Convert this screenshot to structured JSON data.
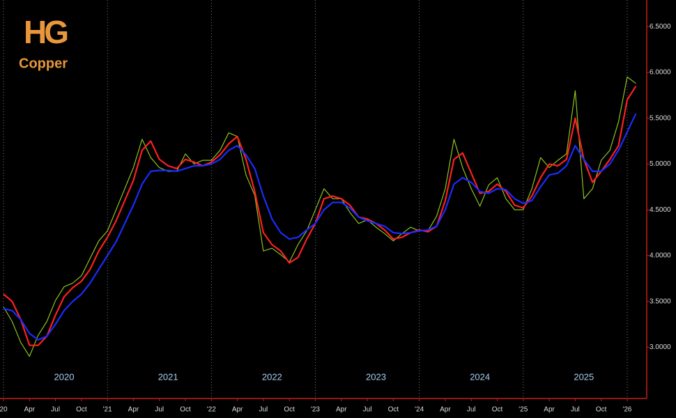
{
  "logo": {
    "mark": "HG",
    "name": "Copper"
  },
  "chart_data": {
    "type": "line",
    "categories": [
      "20",
      null,
      null,
      "Apr",
      null,
      null,
      "Jul",
      null,
      null,
      "Oct",
      null,
      null,
      "'21",
      null,
      null,
      "Apr",
      null,
      null,
      "Jul",
      null,
      null,
      "Oct",
      null,
      null,
      "'22",
      null,
      null,
      "Apr",
      null,
      null,
      "Jul",
      null,
      null,
      "Oct",
      null,
      null,
      "'23",
      null,
      null,
      "Apr",
      null,
      null,
      "Jul",
      null,
      null,
      "Oct",
      null,
      null,
      "'24",
      null,
      null,
      "Apr",
      null,
      null,
      "Jul",
      null,
      null,
      "Oct",
      null,
      null,
      "'25",
      null,
      null,
      "Apr",
      null,
      null,
      "Jul",
      null,
      null,
      "Oct",
      null,
      null,
      "'26",
      null
    ],
    "year_labels": [
      "2020",
      "2021",
      "2022",
      "2023",
      "2024",
      "2025"
    ],
    "series": [
      {
        "color": "#8fc31f",
        "values": [
          3.44,
          3.28,
          3.05,
          2.9,
          3.13,
          3.28,
          3.51,
          3.66,
          3.7,
          3.78,
          3.97,
          4.16,
          4.27,
          4.5,
          4.73,
          4.96,
          5.27,
          5.07,
          4.96,
          4.92,
          4.92,
          5.11,
          5.0,
          5.04,
          5.04,
          5.15,
          5.34,
          5.3,
          4.88,
          4.66,
          4.05,
          4.08,
          4.01,
          3.93,
          4.12,
          4.27,
          4.5,
          4.73,
          4.62,
          4.62,
          4.47,
          4.35,
          4.39,
          4.31,
          4.24,
          4.16,
          4.24,
          4.31,
          4.27,
          4.27,
          4.43,
          4.73,
          5.27,
          4.96,
          4.73,
          4.54,
          4.77,
          4.85,
          4.62,
          4.5,
          4.5,
          4.73,
          5.07,
          4.96,
          5.04,
          5.11,
          5.8,
          4.62,
          4.73,
          5.04,
          5.15,
          5.46,
          5.95,
          5.88
        ]
      },
      {
        "color": "#ff2020",
        "values": [
          3.58,
          3.5,
          3.3,
          3.02,
          3.02,
          3.12,
          3.35,
          3.55,
          3.65,
          3.72,
          3.85,
          4.05,
          4.2,
          4.38,
          4.6,
          4.82,
          5.15,
          5.25,
          5.05,
          4.98,
          4.95,
          5.05,
          5.02,
          4.98,
          5.02,
          5.1,
          5.22,
          5.3,
          5.05,
          4.7,
          4.25,
          4.12,
          4.05,
          3.92,
          3.98,
          4.18,
          4.35,
          4.62,
          4.65,
          4.62,
          4.55,
          4.42,
          4.4,
          4.35,
          4.28,
          4.18,
          4.2,
          4.25,
          4.28,
          4.26,
          4.32,
          4.6,
          5.05,
          5.12,
          4.9,
          4.68,
          4.7,
          4.78,
          4.7,
          4.55,
          4.52,
          4.65,
          4.85,
          5.0,
          4.98,
          5.05,
          5.5,
          5.05,
          4.8,
          4.92,
          5.05,
          5.2,
          5.7,
          5.85
        ]
      },
      {
        "color": "#1a2cff",
        "values": [
          3.42,
          3.4,
          3.3,
          3.15,
          3.08,
          3.12,
          3.25,
          3.4,
          3.5,
          3.58,
          3.7,
          3.85,
          4.0,
          4.15,
          4.35,
          4.55,
          4.78,
          4.92,
          4.93,
          4.93,
          4.92,
          4.95,
          4.98,
          4.98,
          5.0,
          5.05,
          5.15,
          5.2,
          5.1,
          4.95,
          4.65,
          4.4,
          4.25,
          4.18,
          4.2,
          4.28,
          4.35,
          4.5,
          4.58,
          4.58,
          4.52,
          4.42,
          4.38,
          4.35,
          4.32,
          4.25,
          4.24,
          4.25,
          4.27,
          4.28,
          4.32,
          4.5,
          4.78,
          4.85,
          4.8,
          4.7,
          4.68,
          4.73,
          4.72,
          4.62,
          4.57,
          4.6,
          4.75,
          4.88,
          4.9,
          4.98,
          5.2,
          5.05,
          4.92,
          4.92,
          5.0,
          5.15,
          5.35,
          5.55
        ]
      }
    ],
    "ylim": [
      2.44,
      6.79
    ],
    "yticks": [
      {
        "value": 3.0,
        "label": "3.0000"
      },
      {
        "value": 3.5,
        "label": "3.5000"
      },
      {
        "value": 4.0,
        "label": "4.0000"
      },
      {
        "value": 4.5,
        "label": "4.5000"
      },
      {
        "value": 5.0,
        "label": "5.0000"
      },
      {
        "value": 5.5,
        "label": "5.5000"
      },
      {
        "value": 6.0,
        "label": "6.0000"
      },
      {
        "value": 6.5,
        "label": "6.5000"
      }
    ]
  }
}
